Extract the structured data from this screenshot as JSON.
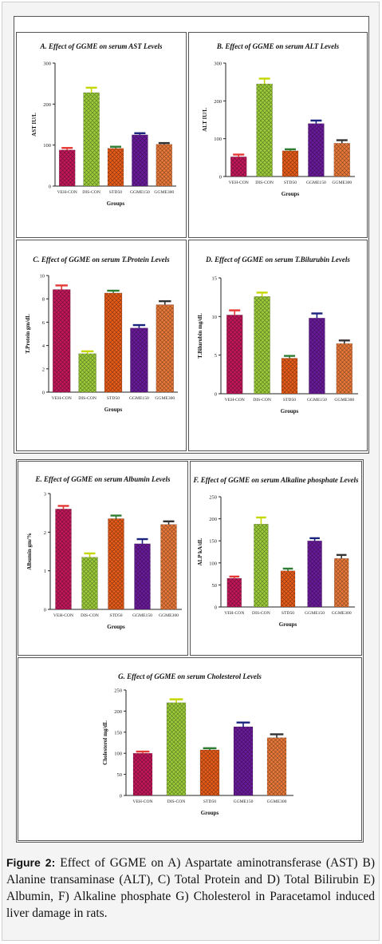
{
  "caption": {
    "label": "Figure 2:",
    "text": "Effect of GGME on A) Aspartate aminotransferase (AST) B) Alanine transaminase (ALT), C) Total Protein and D) Total Bilirubin E) Albumin, F) Alkaline phosphate G) Cholesterol in Paracetamol induced liver damage in rats."
  },
  "colors": {
    "VEH-CON": "#c2185b",
    "DIS-CON": "#9ccc3a",
    "STD50": "#e65c1a",
    "GGME150": "#6a1b9a",
    "GGME300": "#e8793a",
    "err_VEH-CON": "#e53935",
    "err_DIS-CON": "#c6d600",
    "err_STD50": "#2e7d32",
    "err_GGME150": "#1a237e",
    "err_GGME300": "#333333"
  },
  "chart_data": [
    {
      "id": "A",
      "type": "bar",
      "title": "A. Effect of GGME on serum AST Levels",
      "xlabel": "Groups",
      "ylabel": "AST IU/L",
      "categories": [
        "VEH-CON",
        "DIS-CON",
        "STD50",
        "GGME150",
        "GGME300"
      ],
      "values": [
        88,
        228,
        92,
        125,
        102
      ],
      "errors": [
        5,
        12,
        4,
        4,
        3
      ],
      "ylim": [
        0,
        300
      ],
      "yticks": [
        "0",
        "100",
        "200",
        "300"
      ]
    },
    {
      "id": "B",
      "type": "bar",
      "title": "B. Effect of GGME on serum ALT Levels",
      "xlabel": "Groups",
      "ylabel": "ALT IU/L",
      "categories": [
        "VEH-CON",
        "DIS-CON",
        "STD50",
        "GGME150",
        "GGME300"
      ],
      "values": [
        52,
        245,
        68,
        140,
        88
      ],
      "errors": [
        6,
        14,
        4,
        8,
        8
      ],
      "ylim": [
        0,
        300
      ],
      "yticks": [
        "0",
        "100",
        "200",
        "300"
      ]
    },
    {
      "id": "C",
      "type": "bar",
      "title": "C. Effect of GGME on serum T.Protein Levels",
      "xlabel": "Groups",
      "ylabel": "T.Protein gm/dL",
      "categories": [
        "VEH-CON",
        "DIS-CON",
        "STD50",
        "GGME150",
        "GGME300"
      ],
      "values": [
        8.8,
        3.3,
        8.5,
        5.5,
        7.5
      ],
      "errors": [
        0.35,
        0.2,
        0.2,
        0.25,
        0.3
      ],
      "ylim": [
        0,
        10
      ],
      "yticks": [
        "0",
        "2",
        "4",
        "6",
        "8",
        "10"
      ]
    },
    {
      "id": "D",
      "type": "bar",
      "title": "D. Effect of GGME on serum T.Bilurubin Levels",
      "xlabel": "Groups",
      "ylabel": "T.Bilurubin mg/dL",
      "categories": [
        "VEH-CON",
        "DIS-CON",
        "STD50",
        "GGME150",
        "GGME300"
      ],
      "values": [
        10.2,
        12.6,
        4.6,
        9.8,
        6.5
      ],
      "errors": [
        0.6,
        0.5,
        0.3,
        0.6,
        0.4
      ],
      "ylim": [
        0,
        15
      ],
      "yticks": [
        "0",
        "5",
        "10",
        "15"
      ]
    },
    {
      "id": "E",
      "type": "bar",
      "title": "E. Effect of GGME on serum Albumin Levels",
      "xlabel": "Groups",
      "ylabel": "Albumin gm/%",
      "categories": [
        "VEH-CON",
        "DIS-CON",
        "STD50",
        "GGME150",
        "GGME300"
      ],
      "values": [
        2.6,
        1.35,
        2.35,
        1.7,
        2.2
      ],
      "errors": [
        0.08,
        0.1,
        0.08,
        0.12,
        0.08
      ],
      "ylim": [
        0,
        3
      ],
      "yticks": [
        "0",
        "1",
        "2",
        "3"
      ]
    },
    {
      "id": "F",
      "type": "bar",
      "title": "F. Effect of GGME on serum Alkaline phosphate Levels",
      "xlabel": "Groups",
      "ylabel": "ALP kA/dL",
      "categories": [
        "VEH-CON",
        "DIS-CON",
        "STD50",
        "GGME150",
        "GGME300"
      ],
      "values": [
        65,
        188,
        82,
        150,
        110
      ],
      "errors": [
        4,
        15,
        5,
        6,
        8
      ],
      "ylim": [
        0,
        250
      ],
      "yticks": [
        "0",
        "50",
        "100",
        "150",
        "200",
        "250"
      ]
    },
    {
      "id": "G",
      "type": "bar",
      "title": "G. Effect of GGME on serum Cholesterol Levels",
      "xlabel": "Groups",
      "ylabel": "Cholesterol mg/dL",
      "categories": [
        "VEH-CON",
        "DIS-CON",
        "STD50",
        "GGME150",
        "GGME300"
      ],
      "values": [
        100,
        220,
        108,
        163,
        137
      ],
      "errors": [
        4,
        8,
        4,
        10,
        8
      ],
      "ylim": [
        0,
        250
      ],
      "yticks": [
        "0",
        "50",
        "100",
        "150",
        "200",
        "250"
      ]
    }
  ]
}
